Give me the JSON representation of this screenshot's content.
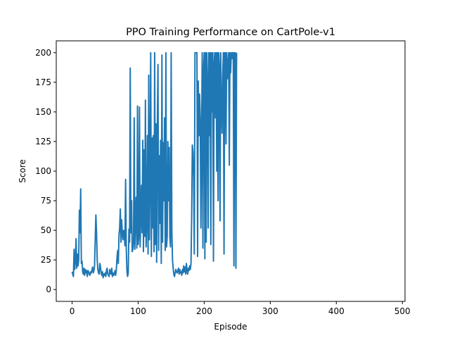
{
  "chart_data": {
    "type": "line",
    "title": "PPO Training Performance on CartPole-v1",
    "xlabel": "Episode",
    "ylabel": "Score",
    "xlim": [
      -24,
      504
    ],
    "ylim": [
      -10,
      210
    ],
    "xticks": [
      0,
      100,
      200,
      300,
      400,
      500
    ],
    "yticks": [
      0,
      25,
      50,
      75,
      100,
      125,
      150,
      175,
      200
    ],
    "grid": false,
    "legend": "none",
    "color": "#1f77b4",
    "series": [
      {
        "points": [
          [
            0,
            15
          ],
          [
            1,
            13
          ],
          [
            2,
            11
          ],
          [
            3,
            34
          ],
          [
            4,
            17
          ],
          [
            5,
            25
          ],
          [
            6,
            43
          ],
          [
            7,
            18
          ],
          [
            8,
            30
          ],
          [
            9,
            20
          ],
          [
            10,
            25
          ],
          [
            11,
            67
          ],
          [
            12,
            48
          ],
          [
            13,
            85
          ],
          [
            14,
            22
          ],
          [
            15,
            24
          ],
          [
            16,
            15
          ],
          [
            17,
            13
          ],
          [
            18,
            18
          ],
          [
            19,
            12
          ],
          [
            20,
            17
          ],
          [
            21,
            14
          ],
          [
            22,
            16
          ],
          [
            23,
            11
          ],
          [
            24,
            16
          ],
          [
            25,
            15
          ],
          [
            26,
            13
          ],
          [
            27,
            12
          ],
          [
            28,
            15
          ],
          [
            29,
            14
          ],
          [
            30,
            16
          ],
          [
            31,
            19
          ],
          [
            32,
            14
          ],
          [
            33,
            16
          ],
          [
            34,
            20
          ],
          [
            35,
            42
          ],
          [
            36,
            63
          ],
          [
            37,
            48
          ],
          [
            38,
            25
          ],
          [
            39,
            17
          ],
          [
            40,
            14
          ],
          [
            41,
            13
          ],
          [
            42,
            22
          ],
          [
            43,
            19
          ],
          [
            44,
            14
          ],
          [
            45,
            12
          ],
          [
            46,
            15
          ],
          [
            47,
            10
          ],
          [
            48,
            13
          ],
          [
            49,
            12
          ],
          [
            50,
            14
          ],
          [
            51,
            11
          ],
          [
            52,
            16
          ],
          [
            53,
            18
          ],
          [
            54,
            13
          ],
          [
            55,
            12
          ],
          [
            56,
            11
          ],
          [
            57,
            17
          ],
          [
            58,
            14
          ],
          [
            59,
            13
          ],
          [
            60,
            18
          ],
          [
            61,
            11
          ],
          [
            62,
            14
          ],
          [
            63,
            12
          ],
          [
            64,
            13
          ],
          [
            65,
            16
          ],
          [
            66,
            12
          ],
          [
            67,
            17
          ],
          [
            68,
            27
          ],
          [
            69,
            33
          ],
          [
            70,
            22
          ],
          [
            71,
            46
          ],
          [
            72,
            52
          ],
          [
            73,
            68
          ],
          [
            74,
            40
          ],
          [
            75,
            59
          ],
          [
            76,
            48
          ],
          [
            77,
            42
          ],
          [
            78,
            50
          ],
          [
            79,
            46
          ],
          [
            80,
            37
          ],
          [
            81,
            93
          ],
          [
            82,
            35
          ],
          [
            83,
            16
          ],
          [
            84,
            11
          ],
          [
            85,
            14
          ],
          [
            86,
            51
          ],
          [
            87,
            40
          ],
          [
            88,
            187
          ],
          [
            89,
            48
          ],
          [
            90,
            75
          ],
          [
            91,
            32
          ],
          [
            92,
            34
          ],
          [
            93,
            40
          ],
          [
            94,
            145
          ],
          [
            95,
            34
          ],
          [
            96,
            62
          ],
          [
            97,
            78
          ],
          [
            98,
            35
          ],
          [
            99,
            155
          ],
          [
            100,
            38
          ],
          [
            101,
            46
          ],
          [
            102,
            154
          ],
          [
            103,
            36
          ],
          [
            104,
            61
          ],
          [
            105,
            88
          ],
          [
            106,
            48
          ],
          [
            107,
            126
          ],
          [
            108,
            32
          ],
          [
            109,
            118
          ],
          [
            110,
            45
          ],
          [
            111,
            160
          ],
          [
            112,
            36
          ],
          [
            113,
            58
          ],
          [
            114,
            130
          ],
          [
            115,
            30
          ],
          [
            116,
            181
          ],
          [
            117,
            42
          ],
          [
            118,
            95
          ],
          [
            119,
            200
          ],
          [
            120,
            28
          ],
          [
            121,
            128
          ],
          [
            122,
            52
          ],
          [
            123,
            130
          ],
          [
            124,
            32
          ],
          [
            125,
            200
          ],
          [
            126,
            38
          ],
          [
            127,
            140
          ],
          [
            128,
            23
          ],
          [
            129,
            135
          ],
          [
            130,
            190
          ],
          [
            131,
            33
          ],
          [
            132,
            113
          ],
          [
            133,
            56
          ],
          [
            134,
            126
          ],
          [
            135,
            22
          ],
          [
            136,
            198
          ],
          [
            137,
            40
          ],
          [
            138,
            124
          ],
          [
            139,
            75
          ],
          [
            140,
            145
          ],
          [
            141,
            33
          ],
          [
            142,
            200
          ],
          [
            143,
            36
          ],
          [
            144,
            45
          ],
          [
            145,
            125
          ],
          [
            146,
            75
          ],
          [
            147,
            120
          ],
          [
            148,
            44
          ],
          [
            149,
            36
          ],
          [
            150,
            200
          ],
          [
            151,
            50
          ],
          [
            152,
            25
          ],
          [
            153,
            18
          ],
          [
            154,
            13
          ],
          [
            155,
            11
          ],
          [
            156,
            14
          ],
          [
            157,
            17
          ],
          [
            158,
            15
          ],
          [
            159,
            14
          ],
          [
            160,
            16
          ],
          [
            161,
            18
          ],
          [
            162,
            13
          ],
          [
            163,
            17
          ],
          [
            164,
            14
          ],
          [
            165,
            15
          ],
          [
            166,
            12
          ],
          [
            167,
            17
          ],
          [
            168,
            14
          ],
          [
            169,
            20
          ],
          [
            170,
            15
          ],
          [
            171,
            19
          ],
          [
            172,
            13
          ],
          [
            173,
            22
          ],
          [
            174,
            16
          ],
          [
            175,
            13
          ],
          [
            176,
            18
          ],
          [
            177,
            16
          ],
          [
            178,
            20
          ],
          [
            179,
            17
          ],
          [
            180,
            22
          ],
          [
            181,
            60
          ],
          [
            182,
            122
          ],
          [
            183,
            116
          ],
          [
            184,
            95
          ],
          [
            185,
            30
          ],
          [
            186,
            200
          ],
          [
            187,
            200
          ],
          [
            188,
            200
          ],
          [
            189,
            200
          ],
          [
            190,
            28
          ],
          [
            191,
            176
          ],
          [
            192,
            130
          ],
          [
            193,
            165
          ],
          [
            194,
            145
          ],
          [
            195,
            52
          ],
          [
            196,
            130
          ],
          [
            197,
            200
          ],
          [
            198,
            35
          ],
          [
            199,
            185
          ],
          [
            200,
            200
          ],
          [
            201,
            26
          ],
          [
            202,
            200
          ],
          [
            203,
            40
          ],
          [
            204,
            200
          ],
          [
            205,
            175
          ],
          [
            206,
            52
          ],
          [
            207,
            200
          ],
          [
            208,
            130
          ],
          [
            209,
            200
          ],
          [
            210,
            38
          ],
          [
            211,
            200
          ],
          [
            212,
            150
          ],
          [
            213,
            200
          ],
          [
            214,
            24
          ],
          [
            215,
            190
          ],
          [
            216,
            200
          ],
          [
            217,
            145
          ],
          [
            218,
            200
          ],
          [
            219,
            100
          ],
          [
            220,
            200
          ],
          [
            221,
            75
          ],
          [
            222,
            200
          ],
          [
            223,
            187
          ],
          [
            224,
            58
          ],
          [
            225,
            200
          ],
          [
            226,
            155
          ],
          [
            227,
            132
          ],
          [
            228,
            180
          ],
          [
            229,
            200
          ],
          [
            230,
            30
          ],
          [
            231,
            200
          ],
          [
            232,
            200
          ],
          [
            233,
            123
          ],
          [
            234,
            200
          ],
          [
            235,
            178
          ],
          [
            236,
            190
          ],
          [
            237,
            200
          ],
          [
            238,
            105
          ],
          [
            239,
            200
          ],
          [
            240,
            183
          ],
          [
            241,
            200
          ],
          [
            242,
            195
          ],
          [
            243,
            200
          ],
          [
            244,
            200
          ],
          [
            245,
            20
          ],
          [
            246,
            200
          ],
          [
            247,
            200
          ],
          [
            248,
            18
          ],
          [
            249,
            200
          ]
        ]
      }
    ]
  }
}
